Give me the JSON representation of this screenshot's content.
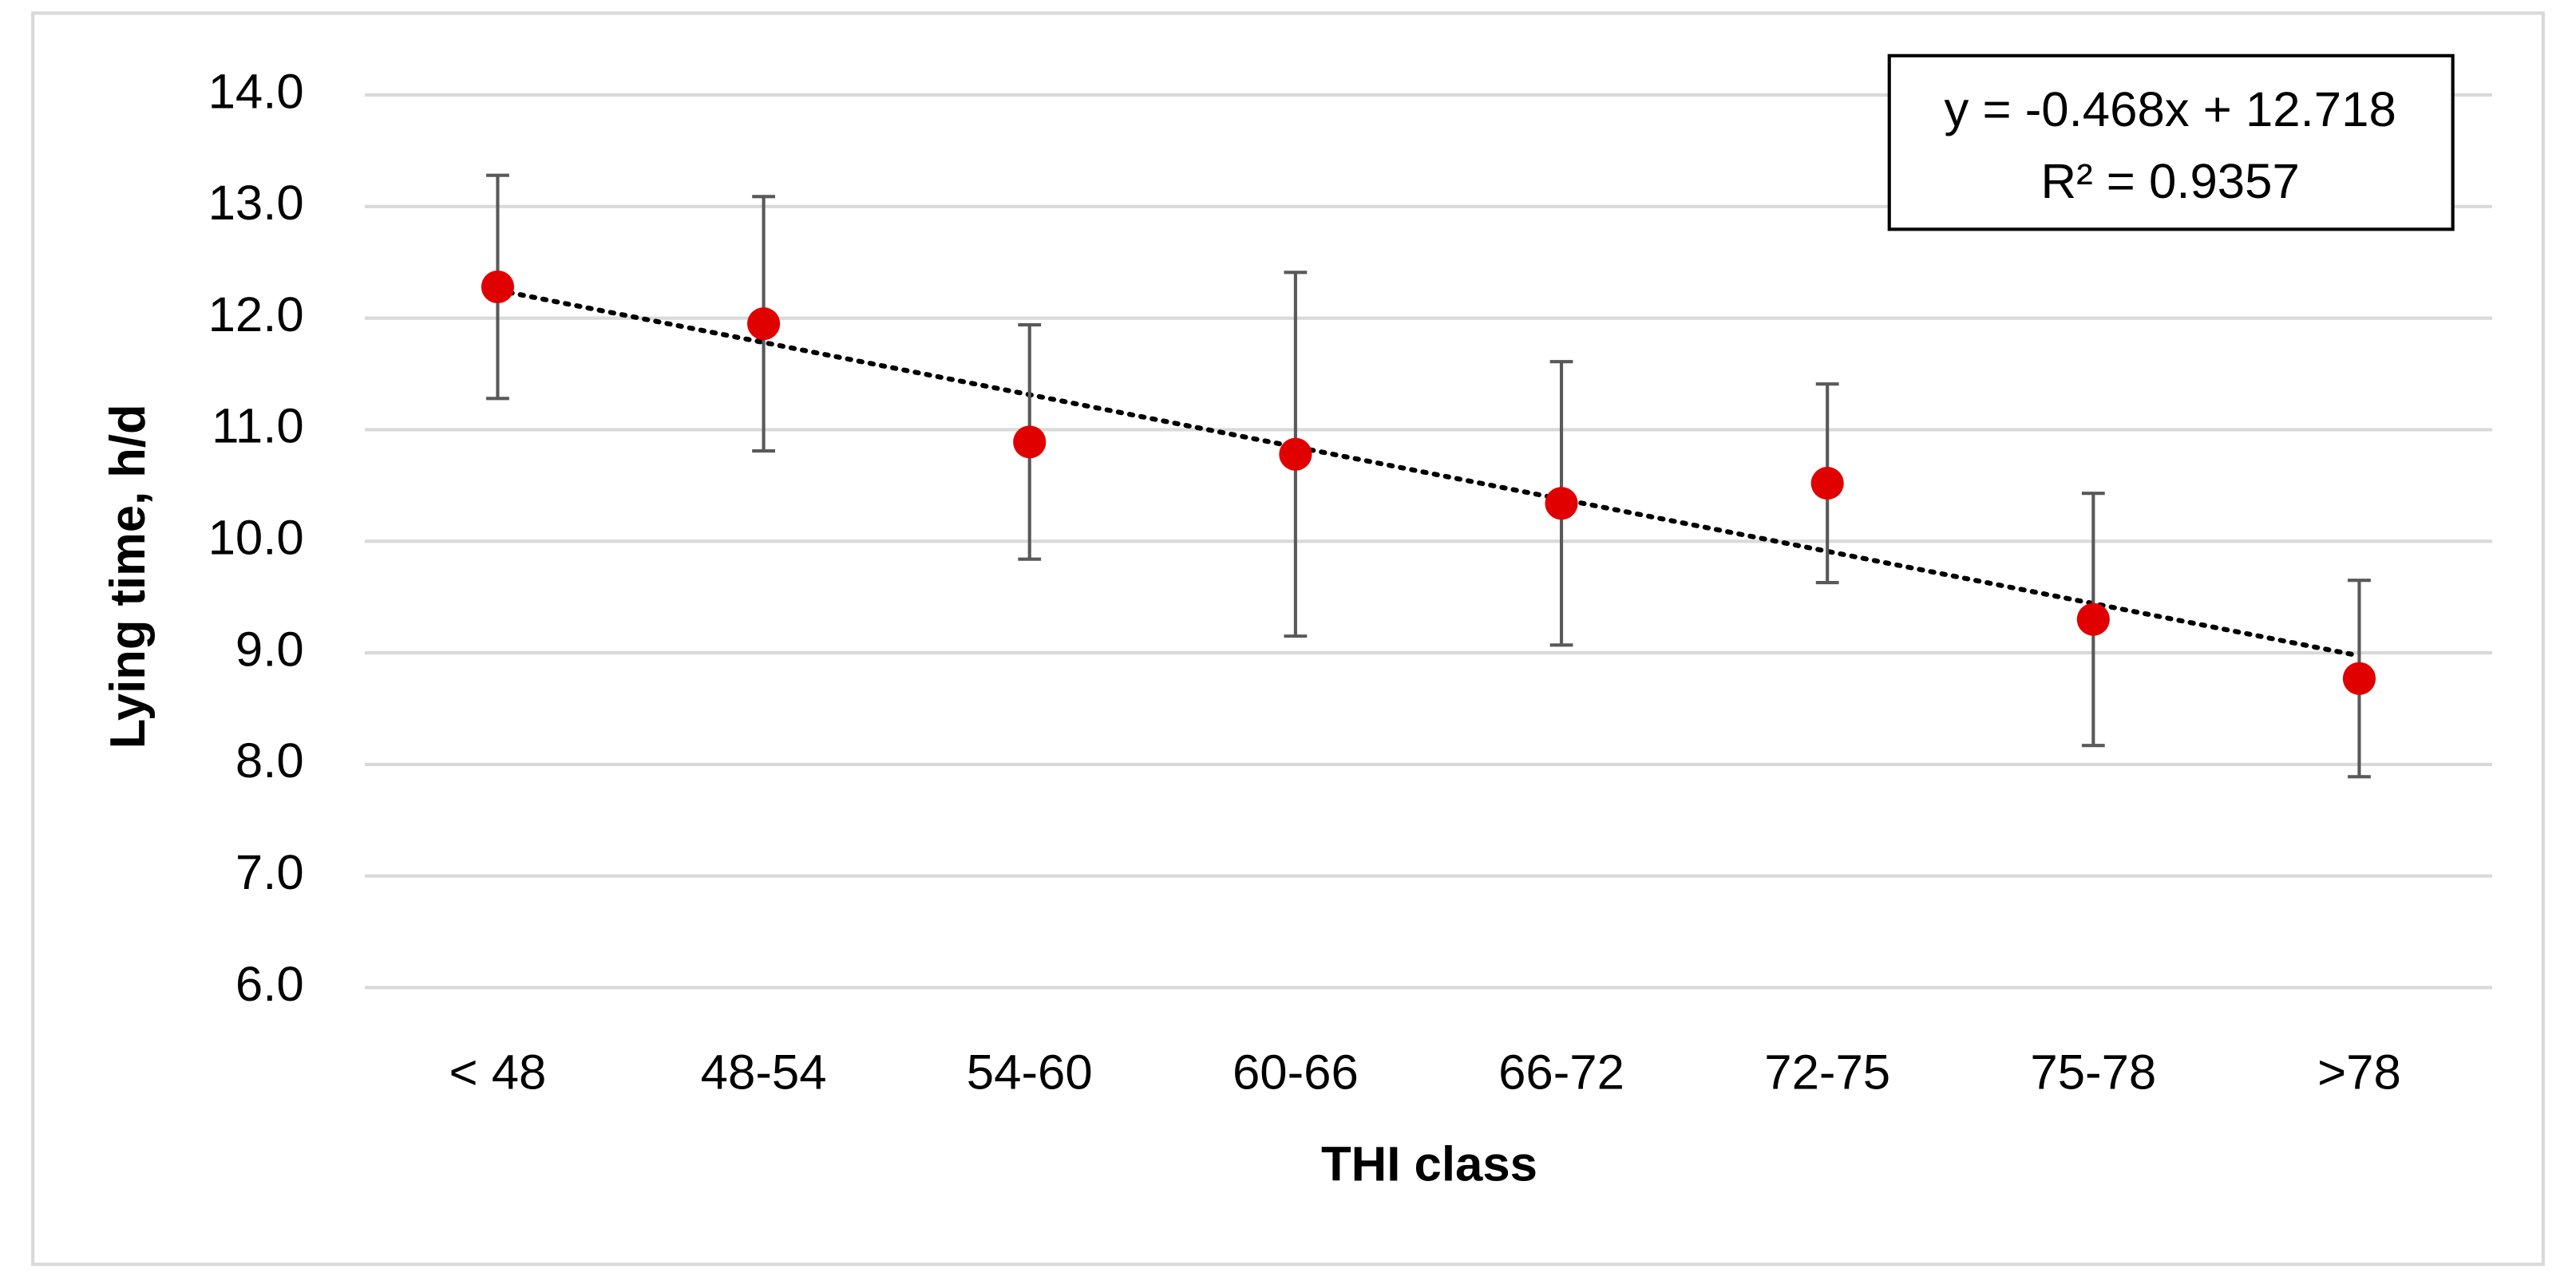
{
  "chart_data": {
    "type": "scatter",
    "x_label": "THI class",
    "y_label": "Lying time, h/d",
    "categories": [
      "< 48",
      "48-54",
      "54-60",
      "60-66",
      "66-72",
      "72-75",
      "75-78",
      ">78"
    ],
    "values": [
      12.28,
      11.95,
      10.89,
      10.78,
      10.34,
      10.52,
      9.3,
      8.77
    ],
    "errors": [
      1.0,
      1.14,
      1.05,
      1.63,
      1.27,
      0.89,
      1.13,
      0.88
    ],
    "color": "#e00000",
    "error_color": "#595959",
    "ylim": [
      6,
      14
    ],
    "yticks": [
      {
        "value": 6,
        "label": "6.0"
      },
      {
        "value": 7,
        "label": "7.0"
      },
      {
        "value": 8,
        "label": "8.0"
      },
      {
        "value": 9,
        "label": "9.0"
      },
      {
        "value": 10,
        "label": "10.0"
      },
      {
        "value": 11,
        "label": "11.0"
      },
      {
        "value": 12,
        "label": "12.0"
      },
      {
        "value": 13,
        "label": "13.0"
      },
      {
        "value": 14,
        "label": "14.0"
      }
    ],
    "grid": true,
    "trendline": {
      "slope": -0.468,
      "intercept": 12.718,
      "equation": "y = -0.468x + 12.718",
      "r_squared_label": "R² = 0.9357"
    }
  }
}
